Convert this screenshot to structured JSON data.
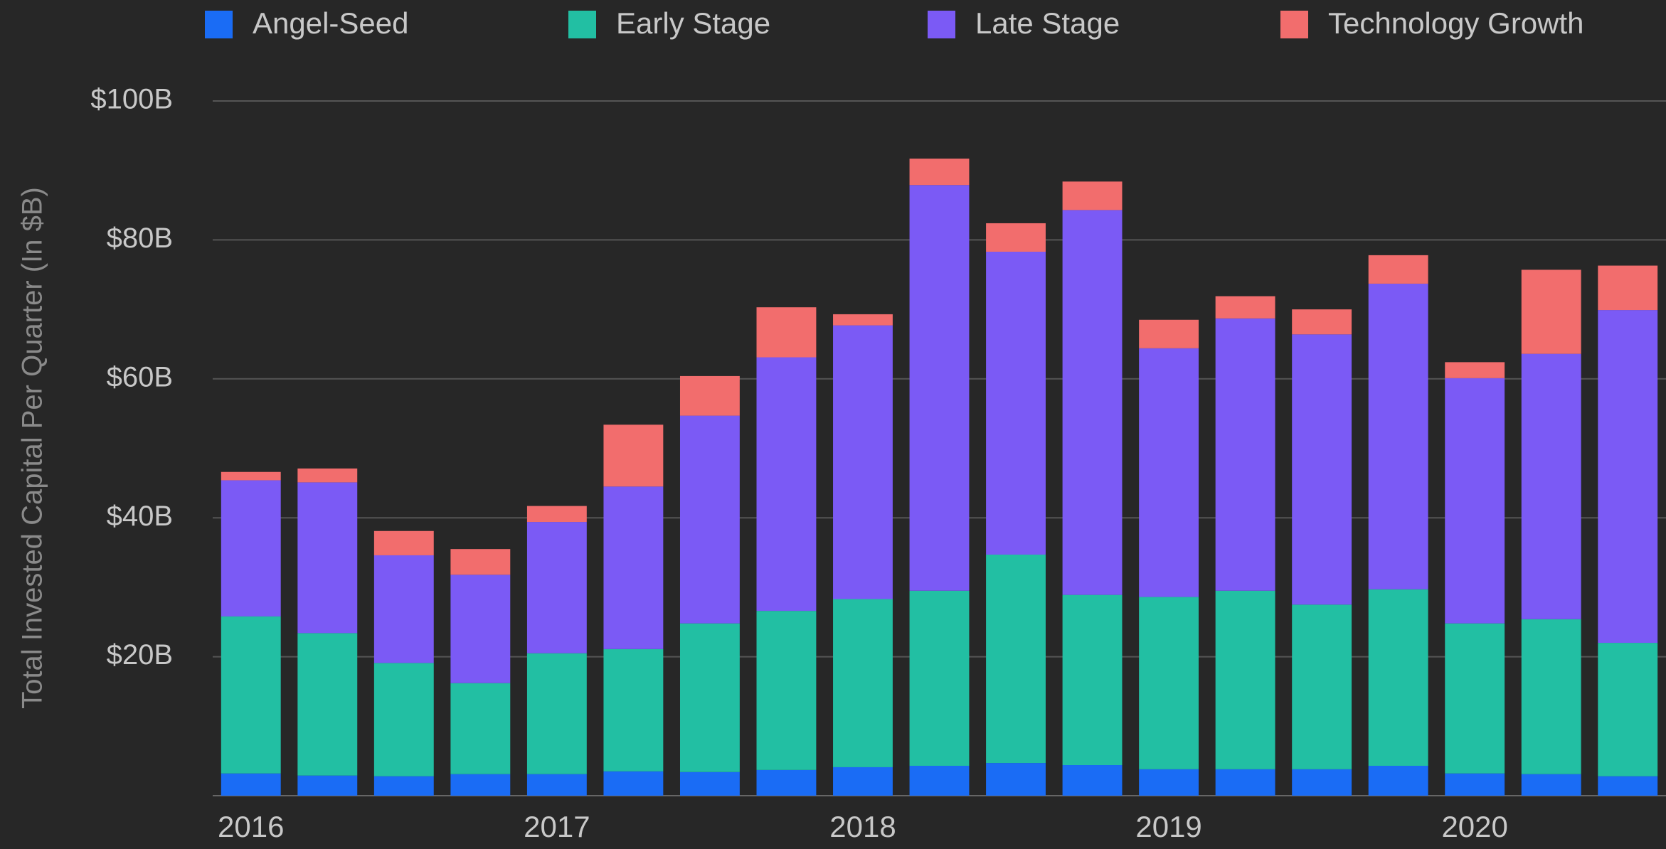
{
  "chart_data": {
    "type": "stacked_bar",
    "y_axis_label": "Total Invested Capital Per Quarter (In $B)",
    "categories": [
      "2016",
      null,
      null,
      null,
      "2017",
      null,
      null,
      null,
      "2018",
      null,
      null,
      null,
      "2019",
      null,
      null,
      null,
      "2020",
      null,
      null
    ],
    "series": [
      {
        "name": "Angel-Seed",
        "color": "#1a6cf5",
        "values": [
          3.2,
          2.9,
          2.8,
          3.1,
          3.1,
          3.5,
          3.4,
          3.7,
          4.1,
          4.3,
          4.7,
          4.4,
          3.8,
          3.8,
          3.8,
          4.3,
          3.2,
          3.1,
          2.8
        ]
      },
      {
        "name": "Early Stage",
        "color": "#22bfa3",
        "values": [
          22.6,
          20.5,
          16.3,
          13.1,
          17.4,
          17.6,
          21.4,
          22.9,
          24.2,
          25.2,
          30.0,
          24.5,
          24.8,
          25.7,
          23.7,
          25.4,
          21.6,
          22.3,
          19.2
        ]
      },
      {
        "name": "Late Stage",
        "color": "#7b5af5",
        "values": [
          19.6,
          21.7,
          15.5,
          15.6,
          18.9,
          23.4,
          29.9,
          36.5,
          39.4,
          58.4,
          43.6,
          55.4,
          35.8,
          39.2,
          38.9,
          44.0,
          35.3,
          38.2,
          47.9
        ]
      },
      {
        "name": "Technology Growth",
        "color": "#f26d6d",
        "values": [
          1.2,
          2.0,
          3.5,
          3.7,
          2.3,
          8.9,
          5.7,
          7.2,
          1.6,
          3.8,
          4.1,
          4.1,
          4.1,
          3.2,
          3.6,
          4.1,
          2.3,
          12.1,
          6.4
        ]
      }
    ],
    "ylim": [
      0,
      100
    ],
    "yticks": [
      {
        "value": 20,
        "label": "$20B"
      },
      {
        "value": 40,
        "label": "$40B"
      },
      {
        "value": 60,
        "label": "$60B"
      },
      {
        "value": 80,
        "label": "$80B"
      },
      {
        "value": 100,
        "label": "$100B"
      }
    ],
    "grid": true,
    "legend": "top"
  }
}
